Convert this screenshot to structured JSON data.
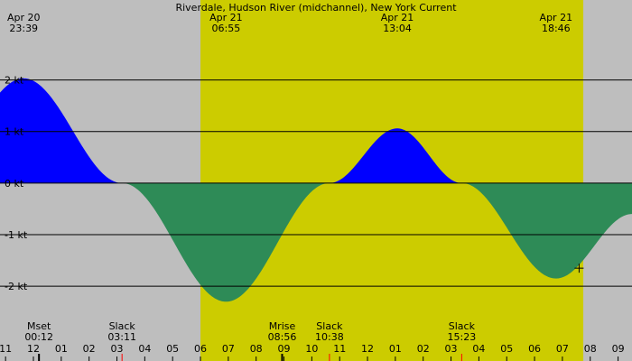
{
  "title": "Riverdale, Hudson River (midchannel), New York Current",
  "colors": {
    "night": "#bebebe",
    "day": "#cccc00",
    "flood": "#0000ff",
    "ebb": "#2e8b57",
    "line": "#000000",
    "marker_red": "#ff0000"
  },
  "top_labels": [
    {
      "date": "Apr 20",
      "time": "23:39"
    },
    {
      "date": "Apr 21",
      "time": "06:55"
    },
    {
      "date": "Apr 21",
      "time": "13:04"
    },
    {
      "date": "Apr 21",
      "time": "18:46"
    }
  ],
  "events": [
    {
      "label": "Mset",
      "time": "00:12"
    },
    {
      "label": "Slack",
      "time": "03:11"
    },
    {
      "label": "Mrise",
      "time": "08:56"
    },
    {
      "label": "Slack",
      "time": "10:38"
    },
    {
      "label": "Slack",
      "time": "15:23"
    }
  ],
  "chart_data": {
    "type": "area",
    "unit": "kt",
    "y_tick_labels": [
      "2 kt",
      "1 kt",
      "0 kt",
      "-1 kt",
      "-2 kt"
    ],
    "y_ticks": [
      2,
      1,
      0,
      -1,
      -2
    ],
    "ylim": [
      -3.45,
      3.55
    ],
    "xlim_hours": [
      -1.2,
      21.5
    ],
    "x_tick_labels": [
      "11",
      "12",
      "01",
      "02",
      "03",
      "04",
      "05",
      "06",
      "07",
      "08",
      "09",
      "10",
      "11",
      "12",
      "01",
      "02",
      "03",
      "04",
      "05",
      "06",
      "07",
      "08",
      "09"
    ],
    "x_tick_hours": [
      -1,
      0,
      1,
      2,
      3,
      4,
      5,
      6,
      7,
      8,
      9,
      10,
      11,
      12,
      13,
      14,
      15,
      16,
      17,
      18,
      19,
      20,
      21
    ],
    "daylight_hours": [
      6.0,
      19.75
    ],
    "extrema": [
      {
        "time": "23:39",
        "day": "Apr 20",
        "hours": -0.35,
        "value": 2.03
      },
      {
        "time": "03:11",
        "day": "Apr 21",
        "hours": 3.18,
        "value": 0
      },
      {
        "time": "06:55",
        "day": "Apr 21",
        "hours": 6.92,
        "value": -2.3
      },
      {
        "time": "10:38",
        "day": "Apr 21",
        "hours": 10.63,
        "value": 0
      },
      {
        "time": "13:04",
        "day": "Apr 21",
        "hours": 13.07,
        "value": 1.06
      },
      {
        "time": "15:23",
        "day": "Apr 21",
        "hours": 15.38,
        "value": 0
      },
      {
        "time": "18:46",
        "day": "Apr 21",
        "hours": 18.77,
        "value": -1.85
      },
      {
        "hours": 21.5,
        "value": -0.6
      }
    ],
    "current_time_marker": {
      "hours": 19.6,
      "value": -1.65
    }
  }
}
